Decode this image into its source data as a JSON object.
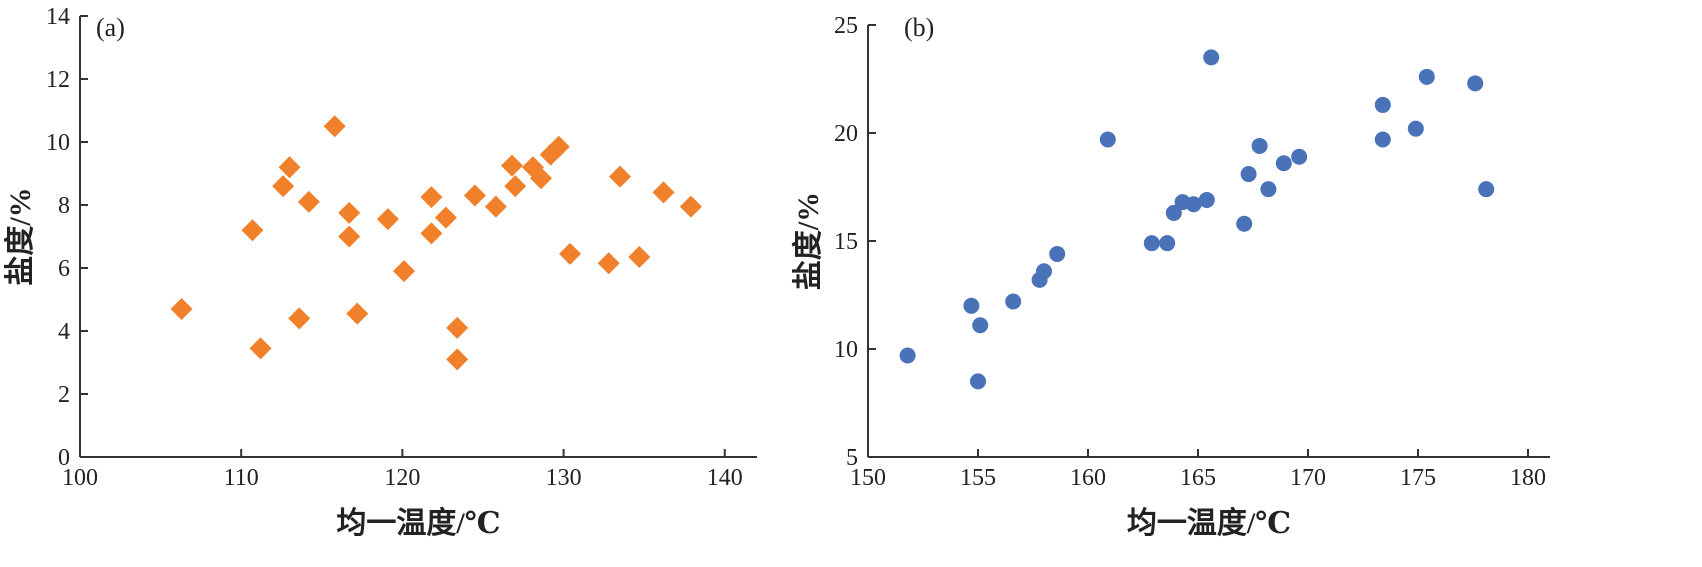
{
  "chart_data": [
    {
      "type": "scatter",
      "panel_label": "(a)",
      "xlabel": "均一温度/℃",
      "ylabel": "盐度/%",
      "xlim": [
        100,
        142
      ],
      "ylim": [
        0,
        14
      ],
      "xticks": [
        "100",
        "110",
        "120",
        "130",
        "140"
      ],
      "yticks": [
        "0",
        "2",
        "4",
        "6",
        "8",
        "10",
        "12",
        "14"
      ],
      "marker": "diamond",
      "color": "#f0802a",
      "grid": false,
      "points": [
        {
          "x": 106.3,
          "y": 4.7
        },
        {
          "x": 110.7,
          "y": 7.2
        },
        {
          "x": 111.2,
          "y": 3.45
        },
        {
          "x": 112.6,
          "y": 8.6
        },
        {
          "x": 113.0,
          "y": 9.2
        },
        {
          "x": 113.6,
          "y": 4.4
        },
        {
          "x": 114.2,
          "y": 8.1
        },
        {
          "x": 115.8,
          "y": 10.5
        },
        {
          "x": 116.7,
          "y": 7.75
        },
        {
          "x": 116.7,
          "y": 7.0
        },
        {
          "x": 117.2,
          "y": 4.55
        },
        {
          "x": 119.1,
          "y": 7.55
        },
        {
          "x": 120.1,
          "y": 5.9
        },
        {
          "x": 121.8,
          "y": 8.25
        },
        {
          "x": 121.8,
          "y": 7.1
        },
        {
          "x": 122.7,
          "y": 7.6
        },
        {
          "x": 123.4,
          "y": 4.1
        },
        {
          "x": 123.4,
          "y": 3.1
        },
        {
          "x": 124.5,
          "y": 8.3
        },
        {
          "x": 125.8,
          "y": 7.95
        },
        {
          "x": 126.8,
          "y": 9.25
        },
        {
          "x": 127.0,
          "y": 8.6
        },
        {
          "x": 128.1,
          "y": 9.2
        },
        {
          "x": 128.6,
          "y": 8.85
        },
        {
          "x": 129.2,
          "y": 9.6
        },
        {
          "x": 129.7,
          "y": 9.85
        },
        {
          "x": 130.4,
          "y": 6.45
        },
        {
          "x": 132.8,
          "y": 6.15
        },
        {
          "x": 133.5,
          "y": 8.9
        },
        {
          "x": 134.7,
          "y": 6.35
        },
        {
          "x": 136.2,
          "y": 8.4
        },
        {
          "x": 137.9,
          "y": 7.95
        }
      ]
    },
    {
      "type": "scatter",
      "panel_label": "(b)",
      "xlabel": "均一温度/℃",
      "ylabel": "盐度/%",
      "xlim": [
        150,
        181
      ],
      "ylim": [
        5,
        25
      ],
      "xticks": [
        "150",
        "155",
        "160",
        "165",
        "170",
        "175",
        "180"
      ],
      "yticks": [
        "5",
        "10",
        "15",
        "20",
        "25"
      ],
      "marker": "circle",
      "color": "#4a72b8",
      "grid": false,
      "points": [
        {
          "x": 151.8,
          "y": 9.7
        },
        {
          "x": 154.7,
          "y": 12.0
        },
        {
          "x": 155.0,
          "y": 8.5
        },
        {
          "x": 155.1,
          "y": 11.1
        },
        {
          "x": 156.6,
          "y": 12.2
        },
        {
          "x": 157.8,
          "y": 13.2
        },
        {
          "x": 158.0,
          "y": 13.6
        },
        {
          "x": 158.6,
          "y": 14.4
        },
        {
          "x": 160.9,
          "y": 19.7
        },
        {
          "x": 162.9,
          "y": 14.9
        },
        {
          "x": 163.6,
          "y": 14.9
        },
        {
          "x": 163.9,
          "y": 16.3
        },
        {
          "x": 164.3,
          "y": 16.8
        },
        {
          "x": 164.8,
          "y": 16.7
        },
        {
          "x": 165.4,
          "y": 16.9
        },
        {
          "x": 165.6,
          "y": 23.5
        },
        {
          "x": 167.1,
          "y": 15.8
        },
        {
          "x": 167.3,
          "y": 18.1
        },
        {
          "x": 167.8,
          "y": 19.4
        },
        {
          "x": 168.2,
          "y": 17.4
        },
        {
          "x": 168.9,
          "y": 18.6
        },
        {
          "x": 169.6,
          "y": 18.9
        },
        {
          "x": 173.4,
          "y": 21.3
        },
        {
          "x": 173.4,
          "y": 19.7
        },
        {
          "x": 174.9,
          "y": 20.2
        },
        {
          "x": 175.4,
          "y": 22.6
        },
        {
          "x": 177.6,
          "y": 22.3
        },
        {
          "x": 178.1,
          "y": 17.4
        }
      ]
    }
  ]
}
